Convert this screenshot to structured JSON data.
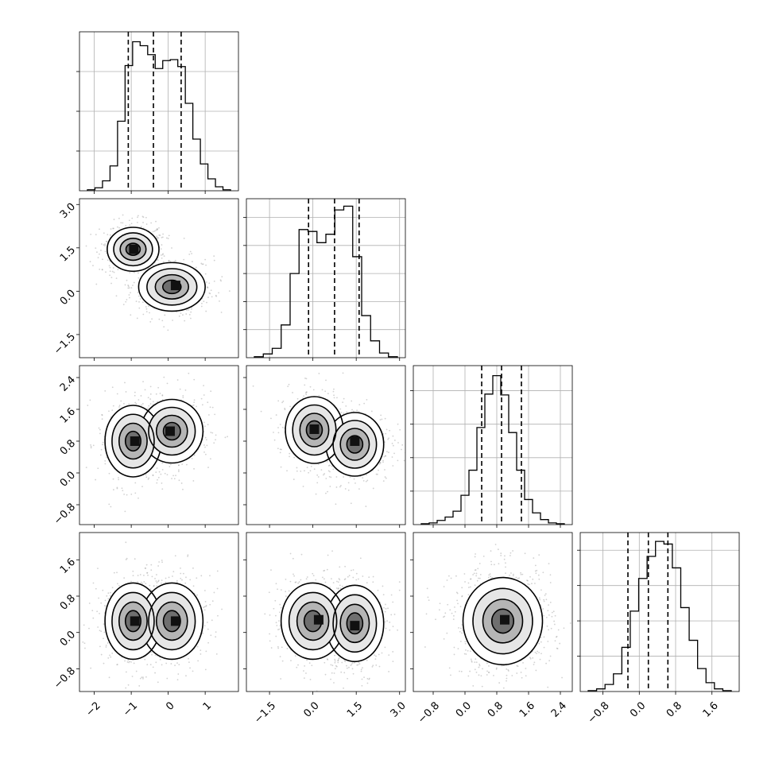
{
  "chart_data": {
    "type": "corner",
    "variables": [
      {
        "range": [
          -2.4,
          1.9
        ],
        "ticks": [
          -2,
          -1,
          0,
          1
        ],
        "tick_labels": [
          "−2",
          "−1",
          "0",
          "1"
        ],
        "quantiles": [
          -1.08,
          -0.4,
          0.35
        ],
        "hist": [
          1,
          3,
          10,
          25,
          70,
          126,
          150,
          146,
          137,
          123,
          131,
          132,
          125,
          88,
          52,
          27,
          12,
          4,
          1
        ],
        "hist_ymax": 160,
        "hist_yticks": [
          40,
          80,
          120
        ]
      },
      {
        "range": [
          -2.3,
          3.2
        ],
        "ticks": [
          -1.5,
          0.0,
          1.5,
          3.0
        ],
        "tick_labels": [
          "−1.5",
          "0.0",
          "1.5",
          "3.0"
        ],
        "quantiles": [
          -0.15,
          0.75,
          1.6
        ],
        "hist": [
          1,
          4,
          10,
          35,
          90,
          137,
          135,
          123,
          132,
          158,
          162,
          108,
          45,
          18,
          5,
          1
        ],
        "hist_ymax": 170,
        "hist_yticks": [
          30,
          60,
          90,
          120,
          150
        ]
      },
      {
        "range": [
          -1.3,
          2.7
        ],
        "ticks": [
          -0.8,
          0.0,
          0.8,
          1.6,
          2.4
        ],
        "tick_labels": [
          "−0.8",
          "0.0",
          "0.8",
          "1.6",
          "2.4"
        ],
        "quantiles": [
          0.42,
          0.92,
          1.42
        ],
        "hist": [
          1,
          2,
          5,
          9,
          16,
          35,
          65,
          116,
          156,
          178,
          155,
          110,
          65,
          30,
          14,
          6,
          2,
          1
        ],
        "hist_ymax": 190,
        "hist_yticks": [
          40,
          80,
          120,
          160
        ]
      },
      {
        "range": [
          -1.3,
          2.2
        ],
        "ticks": [
          -0.8,
          0.0,
          0.8,
          1.6
        ],
        "tick_labels": [
          "−0.8",
          "0.0",
          "0.8",
          "1.6"
        ],
        "quantiles": [
          -0.25,
          0.2,
          0.63
        ],
        "hist": [
          1,
          3,
          8,
          20,
          50,
          91,
          128,
          153,
          170,
          167,
          140,
          95,
          58,
          26,
          10,
          3,
          1
        ],
        "hist_ymax": 180,
        "hist_yticks": [
          40,
          80,
          120,
          160
        ]
      }
    ],
    "pairs": [
      {
        "row": 1,
        "col": 0,
        "modes": [
          [
            -0.95,
            1.45,
            0.35,
            0.38
          ],
          [
            0.1,
            0.15,
            0.45,
            0.42
          ]
        ],
        "cores": [
          [
            -0.93,
            1.45
          ],
          [
            0.2,
            0.2
          ]
        ]
      },
      {
        "row": 2,
        "col": 0,
        "modes": [
          [
            -0.95,
            0.8,
            0.38,
            0.45
          ],
          [
            0.1,
            1.05,
            0.42,
            0.4
          ]
        ],
        "cores": [
          [
            -0.9,
            0.8
          ],
          [
            0.05,
            1.05
          ]
        ]
      },
      {
        "row": 2,
        "col": 1,
        "modes": [
          [
            0.05,
            1.08,
            0.5,
            0.42
          ],
          [
            1.45,
            0.72,
            0.5,
            0.4
          ]
        ],
        "cores": [
          [
            0.05,
            1.1
          ],
          [
            1.45,
            0.8
          ]
        ]
      },
      {
        "row": 3,
        "col": 0,
        "modes": [
          [
            -0.95,
            0.25,
            0.38,
            0.42
          ],
          [
            0.1,
            0.25,
            0.42,
            0.42
          ]
        ],
        "cores": [
          [
            -0.9,
            0.25
          ],
          [
            0.2,
            0.25
          ]
        ]
      },
      {
        "row": 3,
        "col": 1,
        "modes": [
          [
            0.0,
            0.25,
            0.55,
            0.42
          ],
          [
            1.45,
            0.2,
            0.5,
            0.42
          ]
        ],
        "cores": [
          [
            0.2,
            0.28
          ],
          [
            1.45,
            0.15
          ]
        ]
      },
      {
        "row": 3,
        "col": 2,
        "modes": [
          [
            0.95,
            0.25,
            0.5,
            0.48
          ]
        ],
        "cores": [
          [
            1.0,
            0.28
          ]
        ]
      }
    ]
  }
}
